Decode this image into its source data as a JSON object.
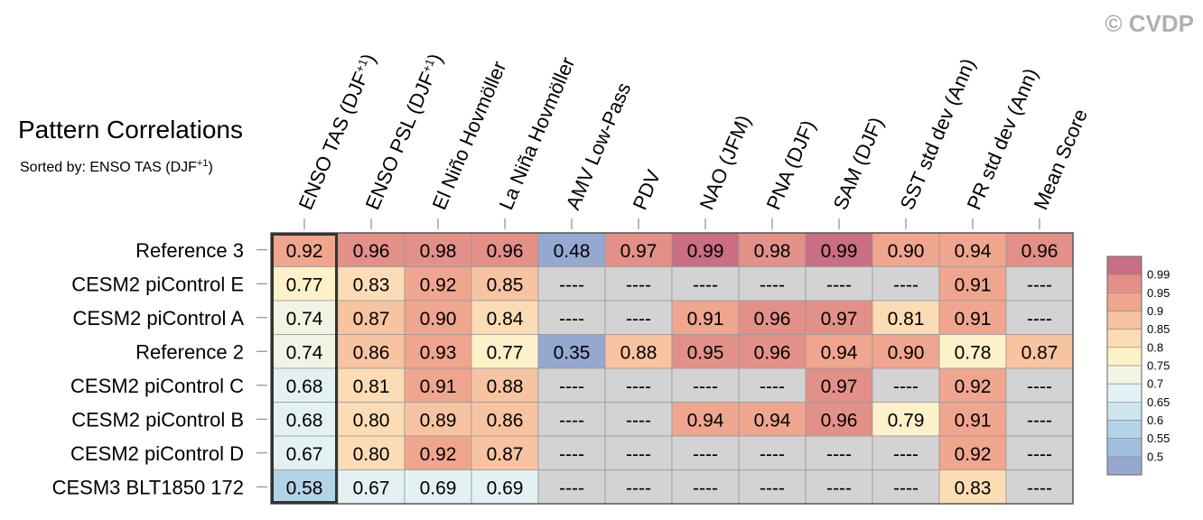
{
  "watermark": "© CVDP",
  "chart_data": {
    "type": "heatmap",
    "title": "Pattern Correlations",
    "subtitle_prefix": "Sorted by: ENSO TAS (DJF",
    "subtitle_sup": "+1",
    "subtitle_suffix": ")",
    "columns": [
      {
        "label": "ENSO TAS (DJF",
        "sup": "+1",
        "suffix": ")"
      },
      {
        "label": "ENSO PSL (DJF",
        "sup": "+1",
        "suffix": ")"
      },
      {
        "label": "El Niño Hovmöller",
        "sup": "",
        "suffix": ""
      },
      {
        "label": "La Niña Hovmöller",
        "sup": "",
        "suffix": ""
      },
      {
        "label": "AMV Low-Pass",
        "sup": "",
        "suffix": ""
      },
      {
        "label": "PDV",
        "sup": "",
        "suffix": ""
      },
      {
        "label": "NAO (JFM)",
        "sup": "",
        "suffix": ""
      },
      {
        "label": "PNA (DJF)",
        "sup": "",
        "suffix": ""
      },
      {
        "label": "SAM (DJF)",
        "sup": "",
        "suffix": ""
      },
      {
        "label": "SST std dev (Ann)",
        "sup": "",
        "suffix": ""
      },
      {
        "label": "PR std dev (Ann)",
        "sup": "",
        "suffix": ""
      },
      {
        "label": "Mean Score",
        "sup": "",
        "suffix": ""
      }
    ],
    "rows": [
      "Reference 3",
      "CESM2 piControl E",
      "CESM2 piControl A",
      "Reference 2",
      "CESM2 piControl C",
      "CESM2 piControl B",
      "CESM2 piControl D",
      "CESM3 BLT1850 172"
    ],
    "values": [
      [
        "0.92",
        "0.96",
        "0.98",
        "0.96",
        "0.48",
        "0.97",
        "0.99",
        "0.98",
        "0.99",
        "0.90",
        "0.94",
        "0.96"
      ],
      [
        "0.77",
        "0.83",
        "0.92",
        "0.85",
        "----",
        "----",
        "----",
        "----",
        "----",
        "----",
        "0.91",
        "----"
      ],
      [
        "0.74",
        "0.87",
        "0.90",
        "0.84",
        "----",
        "----",
        "0.91",
        "0.96",
        "0.97",
        "0.81",
        "0.91",
        "----"
      ],
      [
        "0.74",
        "0.86",
        "0.93",
        "0.77",
        "0.35",
        "0.88",
        "0.95",
        "0.96",
        "0.94",
        "0.90",
        "0.78",
        "0.87"
      ],
      [
        "0.68",
        "0.81",
        "0.91",
        "0.88",
        "----",
        "----",
        "----",
        "----",
        "0.97",
        "----",
        "0.92",
        "----"
      ],
      [
        "0.68",
        "0.80",
        "0.89",
        "0.86",
        "----",
        "----",
        "0.94",
        "0.94",
        "0.96",
        "0.79",
        "0.91",
        "----"
      ],
      [
        "0.67",
        "0.80",
        "0.92",
        "0.87",
        "----",
        "----",
        "----",
        "----",
        "----",
        "----",
        "0.92",
        "----"
      ],
      [
        "0.58",
        "0.67",
        "0.69",
        "0.69",
        "----",
        "----",
        "----",
        "----",
        "----",
        "----",
        "0.83",
        "----"
      ]
    ],
    "sorted_column": 0,
    "missing_color": "#d3d3d3",
    "colorbar": {
      "labels": [
        "0.99",
        "0.95",
        "0.9",
        "0.85",
        "0.8",
        "0.75",
        "0.7",
        "0.65",
        "0.6",
        "0.55",
        "0.5"
      ],
      "colors": [
        "#c96e83",
        "#e29088",
        "#efa58e",
        "#f7c3a0",
        "#fbdcb4",
        "#fdf1c9",
        "#f2f3e3",
        "#e3f0f4",
        "#cde5ef",
        "#b3d3e6",
        "#9fbfdd",
        "#95a8cf"
      ]
    }
  }
}
